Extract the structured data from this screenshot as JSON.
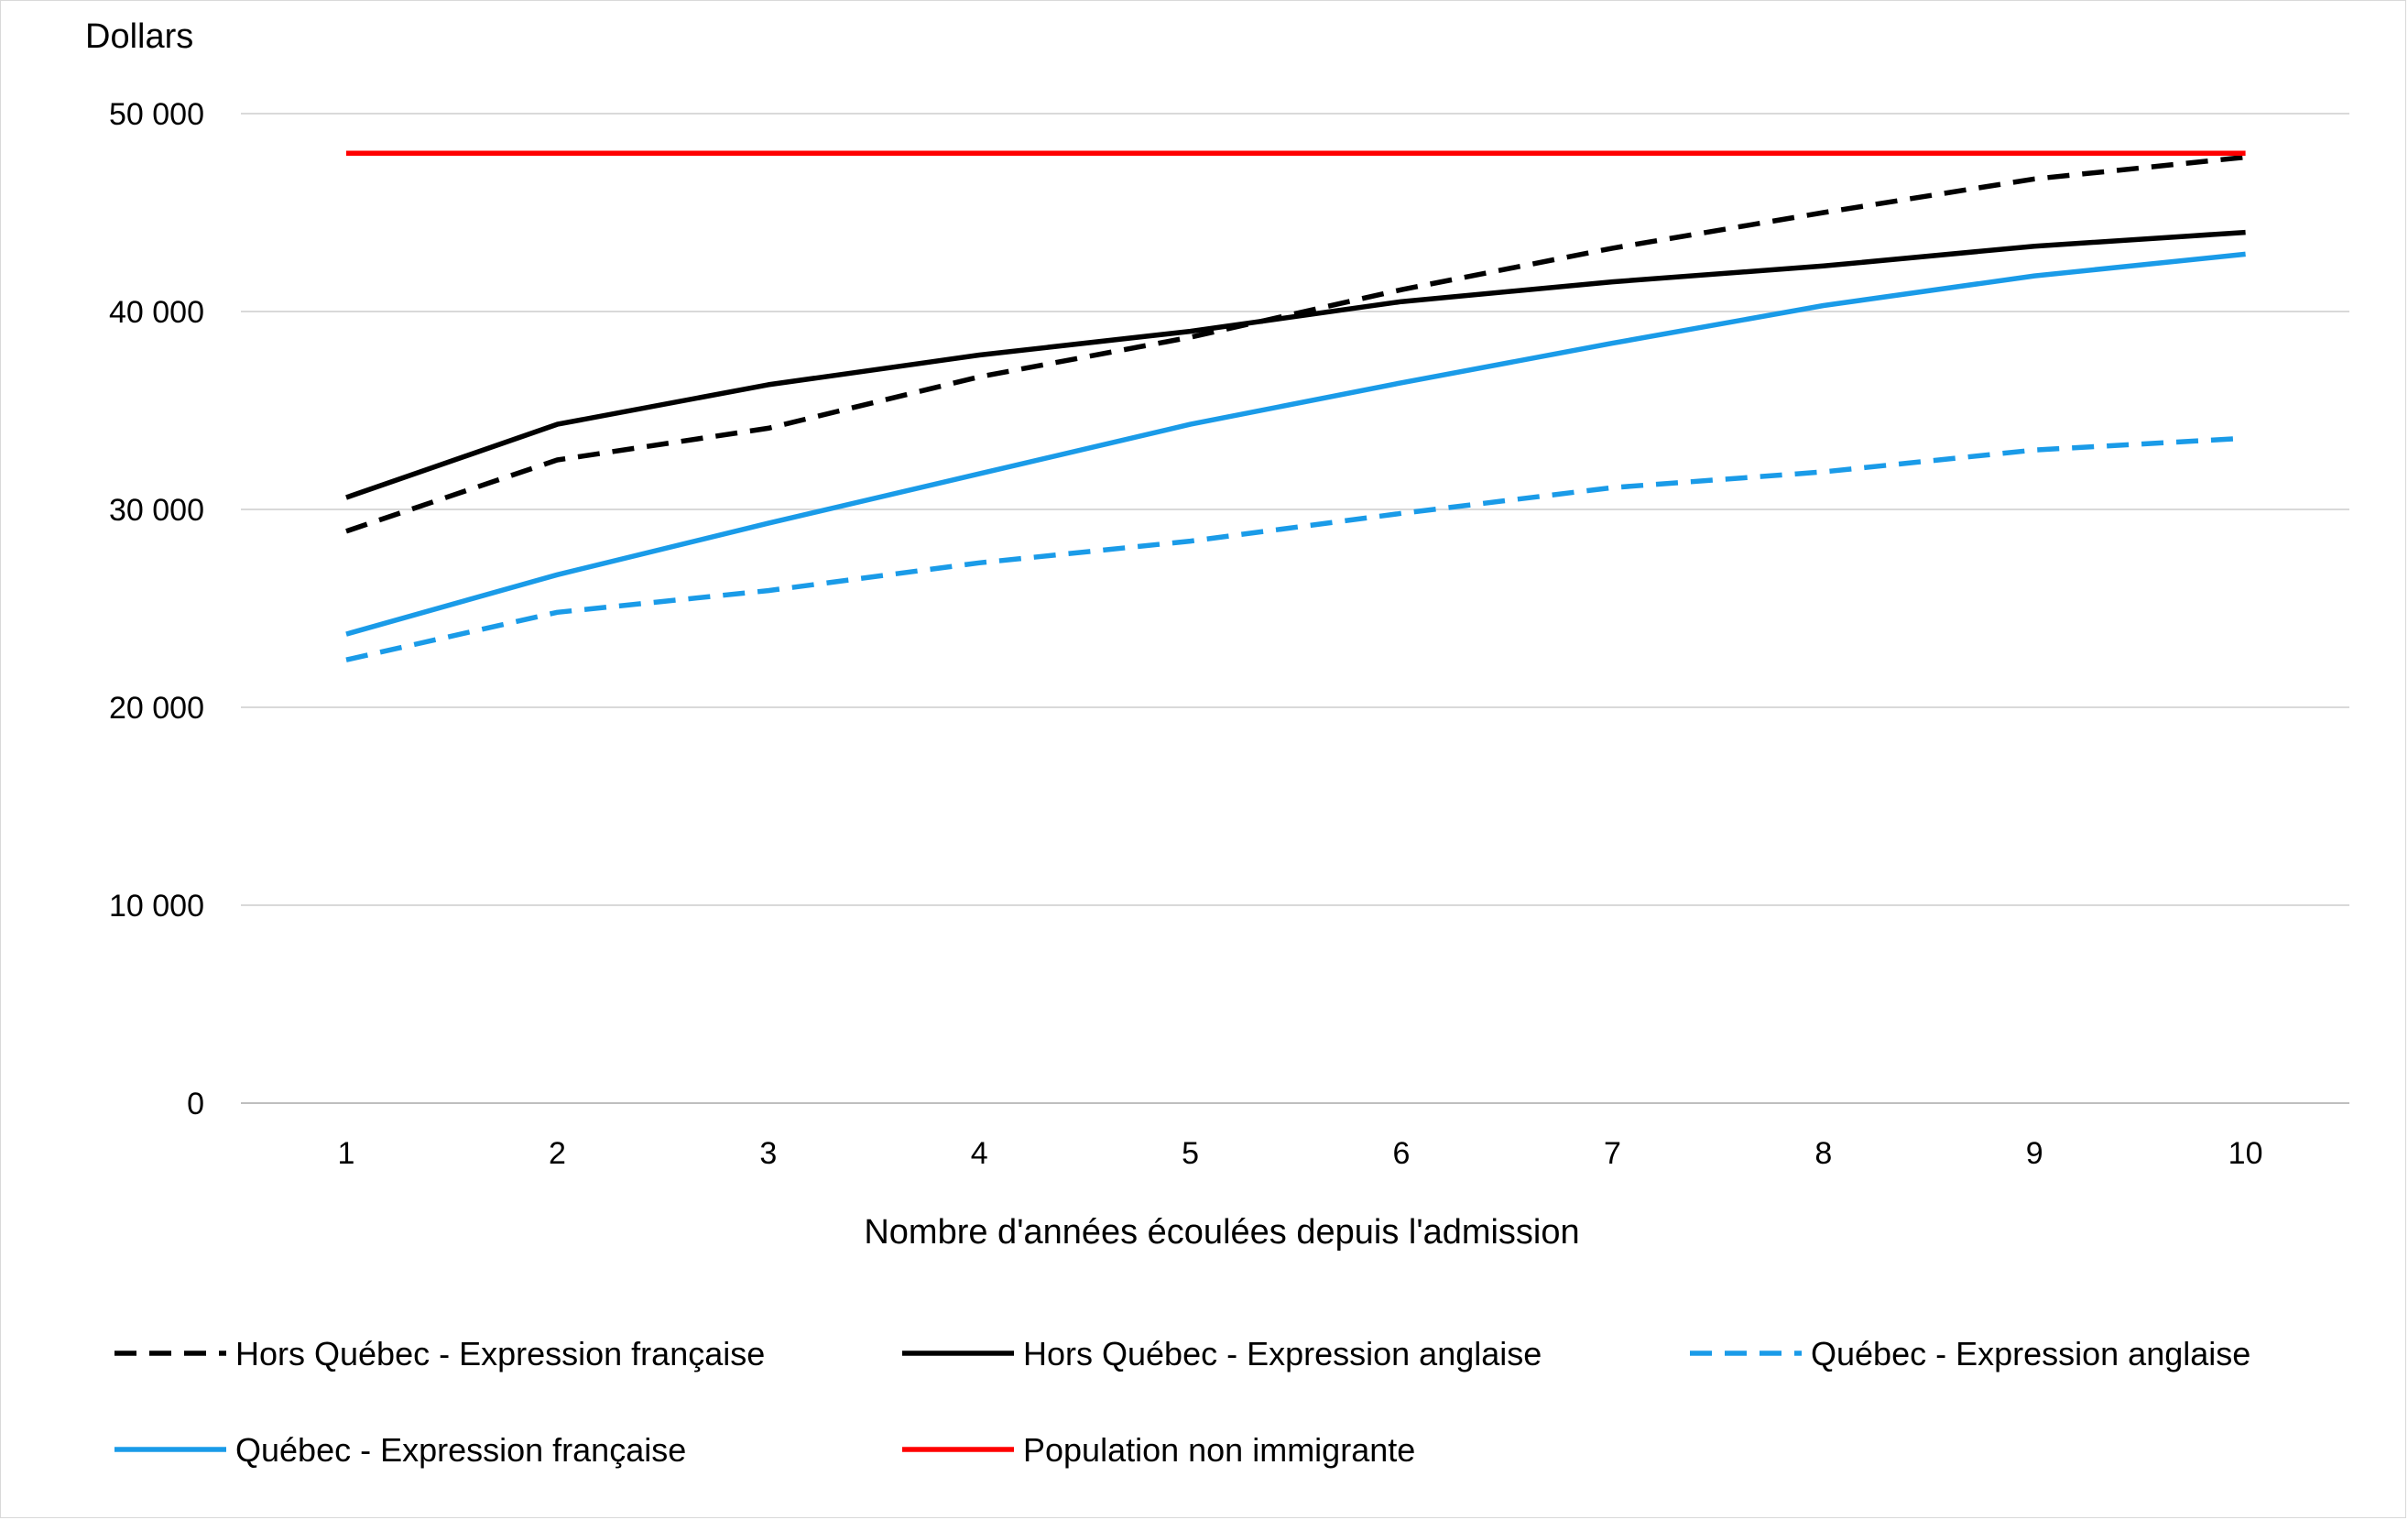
{
  "chart_data": {
    "type": "line",
    "ylabel": "Dollars",
    "xlabel": "Nombre d'années écoulées depuis l'admission",
    "x": [
      1,
      2,
      3,
      4,
      5,
      6,
      7,
      8,
      9,
      10
    ],
    "ylim": [
      0,
      50000
    ],
    "yticks": [
      0,
      10000,
      20000,
      30000,
      40000,
      50000
    ],
    "ytick_labels": [
      "0",
      "10 000",
      "20 000",
      "30 000",
      "40 000",
      "50 000"
    ],
    "grid": "horizontal",
    "legend_position": "bottom",
    "series": [
      {
        "name": "Hors Québec - Expression française",
        "color": "#000000",
        "style": "dashed",
        "values": [
          28900,
          32500,
          34100,
          36700,
          38700,
          41100,
          43200,
          45000,
          46700,
          47800
        ]
      },
      {
        "name": "Hors Québec - Expression anglaise",
        "color": "#000000",
        "style": "solid",
        "values": [
          30600,
          34300,
          36300,
          37800,
          39000,
          40500,
          41500,
          42300,
          43300,
          44000
        ]
      },
      {
        "name": "Québec - Expression anglaise",
        "color": "#1a9be8",
        "style": "dashed",
        "values": [
          22400,
          24800,
          25900,
          27300,
          28400,
          29800,
          31100,
          31900,
          33000,
          33600
        ]
      },
      {
        "name": "Québec - Expression française",
        "color": "#1a9be8",
        "style": "solid",
        "values": [
          23700,
          26700,
          29300,
          31800,
          34300,
          36400,
          38400,
          40300,
          41800,
          42900
        ]
      },
      {
        "name": "Population non immigrante",
        "color": "#ff0000",
        "style": "solid",
        "values": [
          48000,
          48000,
          48000,
          48000,
          48000,
          48000,
          48000,
          48000,
          48000,
          48000
        ]
      }
    ]
  }
}
